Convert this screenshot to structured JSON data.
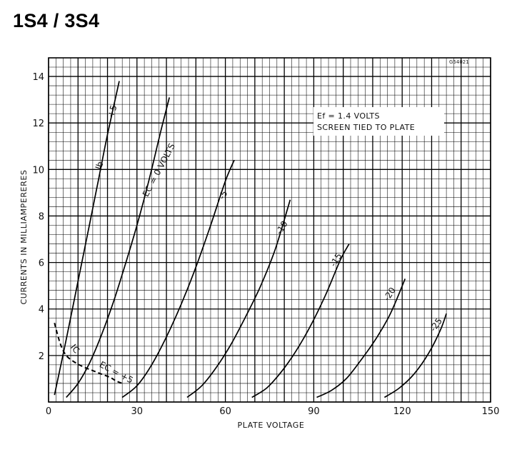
{
  "page": {
    "title": "1S4 / 3S4"
  },
  "chart_data": {
    "type": "line",
    "xlabel": "PLATE VOLTAGE",
    "ylabel": "CURRENTS IN MILLIAMPERERES",
    "xlim": [
      0,
      150
    ],
    "ylim": [
      0,
      14.8
    ],
    "x_ticks": [
      0,
      30,
      60,
      90,
      120,
      150
    ],
    "x_tick_labels": [
      "0",
      "30",
      "60",
      "90",
      "120",
      "150"
    ],
    "y_ticks": [
      2,
      4,
      6,
      8,
      10,
      12,
      14
    ],
    "y_tick_labels": [
      "2",
      "4",
      "6",
      "8",
      "10",
      "12",
      "14"
    ],
    "grid": true,
    "drawing_code": "G54021",
    "annotation": {
      "line1": "Ef = 1.4 VOLTS",
      "line2": "SCREEN TIED TO PLATE"
    },
    "series": [
      {
        "name": "Ec = +5",
        "label": "+5",
        "label2": "Ib",
        "style": "solid",
        "points": [
          [
            2,
            0.3
          ],
          [
            6,
            2.7
          ],
          [
            10,
            5.2
          ],
          [
            14,
            7.7
          ],
          [
            17,
            9.6
          ],
          [
            20,
            11.5
          ],
          [
            24,
            13.8
          ]
        ]
      },
      {
        "name": "Ec = 0 VOLTS",
        "label": "EC = 0 VOLTS",
        "style": "solid",
        "points": [
          [
            6,
            0.2
          ],
          [
            10,
            0.8
          ],
          [
            14,
            1.7
          ],
          [
            18,
            2.9
          ],
          [
            22,
            4.3
          ],
          [
            26,
            5.9
          ],
          [
            30,
            7.6
          ],
          [
            34,
            9.5
          ],
          [
            38,
            11.6
          ],
          [
            41,
            13.1
          ]
        ]
      },
      {
        "name": "Ec = -5",
        "label": "-5",
        "style": "solid",
        "points": [
          [
            25,
            0.2
          ],
          [
            30,
            0.7
          ],
          [
            35,
            1.6
          ],
          [
            40,
            2.8
          ],
          [
            45,
            4.2
          ],
          [
            50,
            5.8
          ],
          [
            55,
            7.6
          ],
          [
            60,
            9.5
          ],
          [
            63,
            10.4
          ]
        ]
      },
      {
        "name": "Ec = -10",
        "label": "-10",
        "style": "solid",
        "points": [
          [
            47,
            0.2
          ],
          [
            52,
            0.7
          ],
          [
            57,
            1.5
          ],
          [
            62,
            2.5
          ],
          [
            67,
            3.7
          ],
          [
            72,
            5.0
          ],
          [
            77,
            6.6
          ],
          [
            82,
            8.7
          ]
        ]
      },
      {
        "name": "Ec = -15",
        "label": "-15",
        "style": "solid",
        "points": [
          [
            69,
            0.2
          ],
          [
            74,
            0.6
          ],
          [
            79,
            1.3
          ],
          [
            84,
            2.2
          ],
          [
            89,
            3.3
          ],
          [
            94,
            4.6
          ],
          [
            99,
            6.1
          ],
          [
            102,
            6.8
          ]
        ]
      },
      {
        "name": "Ec = -20",
        "label": "-20",
        "style": "solid",
        "points": [
          [
            91,
            0.2
          ],
          [
            96,
            0.5
          ],
          [
            101,
            1.0
          ],
          [
            106,
            1.8
          ],
          [
            111,
            2.7
          ],
          [
            116,
            3.8
          ],
          [
            121,
            5.3
          ]
        ]
      },
      {
        "name": "Ec = -25",
        "label": "-25",
        "style": "solid",
        "points": [
          [
            114,
            0.2
          ],
          [
            119,
            0.6
          ],
          [
            124,
            1.2
          ],
          [
            129,
            2.1
          ],
          [
            133,
            3.1
          ],
          [
            135,
            3.8
          ]
        ]
      },
      {
        "name": "Ic at Ec = +5",
        "label": "IC",
        "label2": "EC = +5",
        "style": "dashed",
        "points": [
          [
            2,
            3.4
          ],
          [
            4,
            2.5
          ],
          [
            6,
            2.0
          ],
          [
            9,
            1.7
          ],
          [
            12,
            1.5
          ],
          [
            15,
            1.35
          ],
          [
            18,
            1.2
          ],
          [
            21,
            1.05
          ],
          [
            23,
            0.9
          ],
          [
            25,
            0.8
          ]
        ]
      }
    ]
  }
}
